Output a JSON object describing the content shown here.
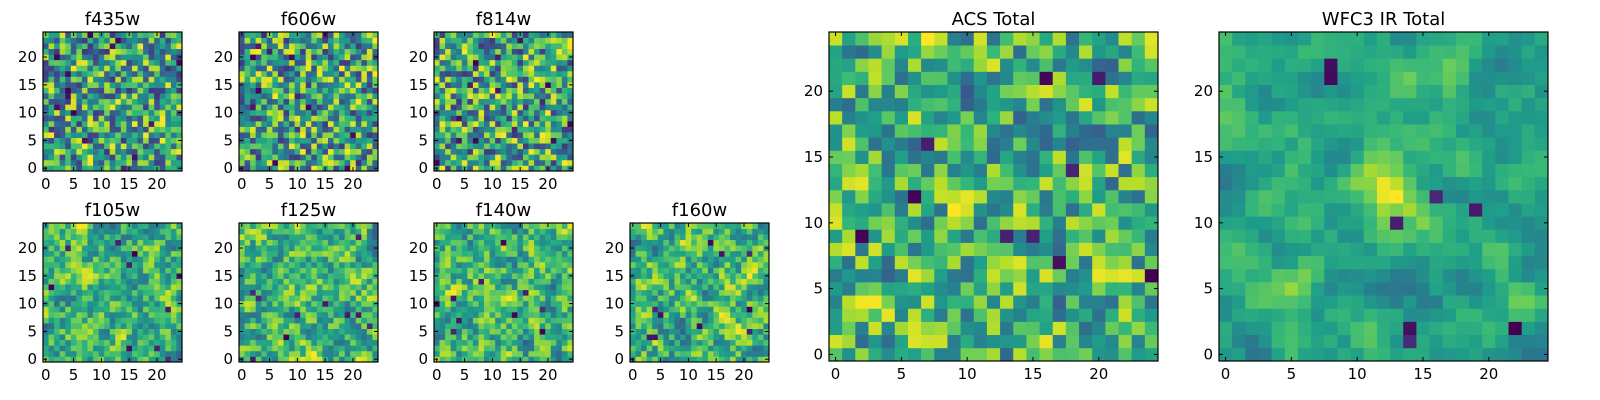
{
  "chart_data": [
    {
      "type": "heatmap",
      "title": "f435w",
      "grid_size": 25,
      "colormap": "viridis",
      "xticks": [
        "0",
        "5",
        "10",
        "15",
        "20"
      ],
      "yticks": [
        "0",
        "5",
        "10",
        "15",
        "20"
      ],
      "seed": 11,
      "style": "noisy"
    },
    {
      "type": "heatmap",
      "title": "f606w",
      "grid_size": 25,
      "colormap": "viridis",
      "xticks": [
        "0",
        "5",
        "10",
        "15",
        "20"
      ],
      "yticks": [
        "0",
        "5",
        "10",
        "15",
        "20"
      ],
      "seed": 23,
      "style": "noisy"
    },
    {
      "type": "heatmap",
      "title": "f814w",
      "grid_size": 25,
      "colormap": "viridis",
      "xticks": [
        "0",
        "5",
        "10",
        "15",
        "20"
      ],
      "yticks": [
        "0",
        "5",
        "10",
        "15",
        "20"
      ],
      "seed": 37,
      "style": "noisy"
    },
    {
      "type": "heatmap",
      "title": "f105w",
      "grid_size": 25,
      "colormap": "viridis",
      "xticks": [
        "0",
        "5",
        "10",
        "15",
        "20"
      ],
      "yticks": [
        "0",
        "5",
        "10",
        "15",
        "20"
      ],
      "seed": 41,
      "style": "smooth"
    },
    {
      "type": "heatmap",
      "title": "f125w",
      "grid_size": 25,
      "colormap": "viridis",
      "xticks": [
        "0",
        "5",
        "10",
        "15",
        "20"
      ],
      "yticks": [
        "0",
        "5",
        "10",
        "15",
        "20"
      ],
      "seed": 53,
      "style": "smooth"
    },
    {
      "type": "heatmap",
      "title": "f140w",
      "grid_size": 25,
      "colormap": "viridis",
      "xticks": [
        "0",
        "5",
        "10",
        "15",
        "20"
      ],
      "yticks": [
        "0",
        "5",
        "10",
        "15",
        "20"
      ],
      "seed": 67,
      "style": "smooth"
    },
    {
      "type": "heatmap",
      "title": "f160w",
      "grid_size": 25,
      "colormap": "viridis",
      "xticks": [
        "0",
        "5",
        "10",
        "15",
        "20"
      ],
      "yticks": [
        "0",
        "5",
        "10",
        "15",
        "20"
      ],
      "seed": 79,
      "style": "smooth"
    },
    {
      "type": "heatmap",
      "title": "ACS Total",
      "grid_size": 25,
      "colormap": "viridis",
      "xticks": [
        "0",
        "5",
        "10",
        "15",
        "20"
      ],
      "yticks": [
        "0",
        "5",
        "10",
        "15",
        "20"
      ],
      "seed": 97,
      "style": "medium"
    },
    {
      "type": "heatmap",
      "title": "WFC3 IR Total",
      "grid_size": 25,
      "colormap": "viridis",
      "xticks": [
        "0",
        "5",
        "10",
        "15",
        "20"
      ],
      "yticks": [
        "0",
        "5",
        "10",
        "15",
        "20"
      ],
      "seed": 131,
      "style": "central"
    }
  ]
}
